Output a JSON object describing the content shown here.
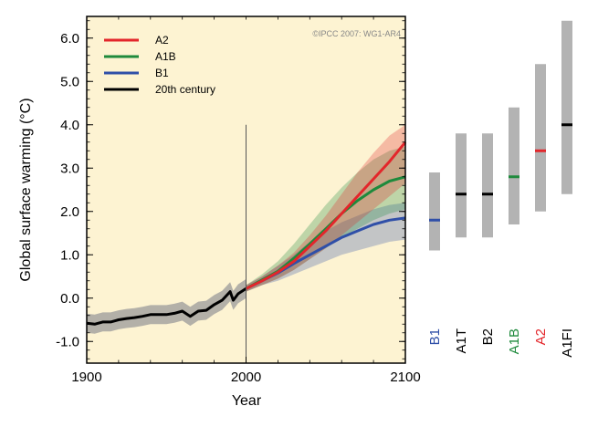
{
  "colors": {
    "A2": "#e3262b",
    "A1B": "#1e8a3c",
    "B1": "#2f4fa8",
    "20th century": "#000000",
    "A1T": "#000000",
    "B2": "#000000",
    "A1FI": "#000000",
    "plot_bg": "#fdf3d2",
    "bar": "#b3b3b3",
    "hist_band": "#9a9a9a"
  },
  "chart_data": {
    "type": "line",
    "title": "",
    "credit": "©IPCC  2007: WG1-AR4",
    "xlabel": "Year",
    "ylabel": "Global surface warming (°C)",
    "xlim": [
      1900,
      2100
    ],
    "ylim": [
      -1.5,
      6.5
    ],
    "xticks": [
      1900,
      2000,
      2100
    ],
    "yticks": [
      -1.0,
      0.0,
      1.0,
      2.0,
      3.0,
      4.0,
      5.0,
      6.0
    ],
    "ytick_labels": [
      "-1.0",
      "0.0",
      "1.0",
      "2.0",
      "3.0",
      "4.0",
      "5.0",
      "6.0"
    ],
    "vline_x": 2000,
    "vline_range": [
      -1.5,
      4.0
    ],
    "legend": [
      "A2",
      "A1B",
      "B1",
      "20th century"
    ],
    "series": [
      {
        "name": "20th century",
        "x": [
          1900,
          1905,
          1910,
          1915,
          1920,
          1925,
          1930,
          1935,
          1940,
          1945,
          1950,
          1955,
          1960,
          1965,
          1970,
          1975,
          1980,
          1985,
          1990,
          1992,
          1995,
          2000
        ],
        "y": [
          -0.58,
          -0.6,
          -0.55,
          -0.55,
          -0.5,
          -0.47,
          -0.45,
          -0.42,
          -0.38,
          -0.38,
          -0.38,
          -0.35,
          -0.3,
          -0.42,
          -0.3,
          -0.28,
          -0.15,
          -0.05,
          0.15,
          -0.05,
          0.1,
          0.22
        ],
        "spread": 0.22
      },
      {
        "name": "A2",
        "x": [
          2000,
          2010,
          2020,
          2030,
          2040,
          2050,
          2060,
          2070,
          2080,
          2090,
          2100
        ],
        "y": [
          0.22,
          0.4,
          0.6,
          0.85,
          1.2,
          1.55,
          1.95,
          2.35,
          2.75,
          3.15,
          3.6
        ],
        "lower": [
          0.15,
          0.3,
          0.45,
          0.65,
          0.9,
          1.15,
          1.45,
          1.75,
          2.05,
          2.35,
          2.65
        ],
        "upper": [
          0.3,
          0.5,
          0.75,
          1.05,
          1.45,
          1.9,
          2.4,
          2.9,
          3.35,
          3.75,
          4.0
        ]
      },
      {
        "name": "A1B",
        "x": [
          2000,
          2010,
          2020,
          2030,
          2040,
          2050,
          2060,
          2070,
          2080,
          2090,
          2100
        ],
        "y": [
          0.22,
          0.42,
          0.62,
          0.92,
          1.25,
          1.6,
          1.95,
          2.25,
          2.5,
          2.7,
          2.8
        ],
        "lower": [
          0.15,
          0.3,
          0.45,
          0.65,
          0.9,
          1.15,
          1.4,
          1.6,
          1.8,
          1.95,
          2.05
        ],
        "upper": [
          0.3,
          0.55,
          0.85,
          1.25,
          1.7,
          2.15,
          2.55,
          2.9,
          3.2,
          3.4,
          3.5
        ]
      },
      {
        "name": "B1",
        "x": [
          2000,
          2010,
          2020,
          2030,
          2040,
          2050,
          2060,
          2070,
          2080,
          2090,
          2100
        ],
        "y": [
          0.22,
          0.4,
          0.58,
          0.8,
          1.0,
          1.2,
          1.4,
          1.55,
          1.7,
          1.8,
          1.85
        ],
        "lower": [
          0.15,
          0.3,
          0.4,
          0.55,
          0.7,
          0.85,
          1.0,
          1.1,
          1.2,
          1.3,
          1.35
        ],
        "upper": [
          0.3,
          0.5,
          0.75,
          1.0,
          1.3,
          1.55,
          1.75,
          1.9,
          2.05,
          2.15,
          2.2
        ]
      }
    ],
    "scenario_ranges": {
      "type": "range",
      "items": [
        {
          "name": "B1",
          "low": 1.1,
          "high": 2.9,
          "best": 1.8
        },
        {
          "name": "A1T",
          "low": 1.4,
          "high": 3.8,
          "best": 2.4
        },
        {
          "name": "B2",
          "low": 1.4,
          "high": 3.8,
          "best": 2.4
        },
        {
          "name": "A1B",
          "low": 1.7,
          "high": 4.4,
          "best": 2.8
        },
        {
          "name": "A2",
          "low": 2.0,
          "high": 5.4,
          "best": 3.4
        },
        {
          "name": "A1FI",
          "low": 2.4,
          "high": 6.4,
          "best": 4.0
        }
      ]
    }
  }
}
